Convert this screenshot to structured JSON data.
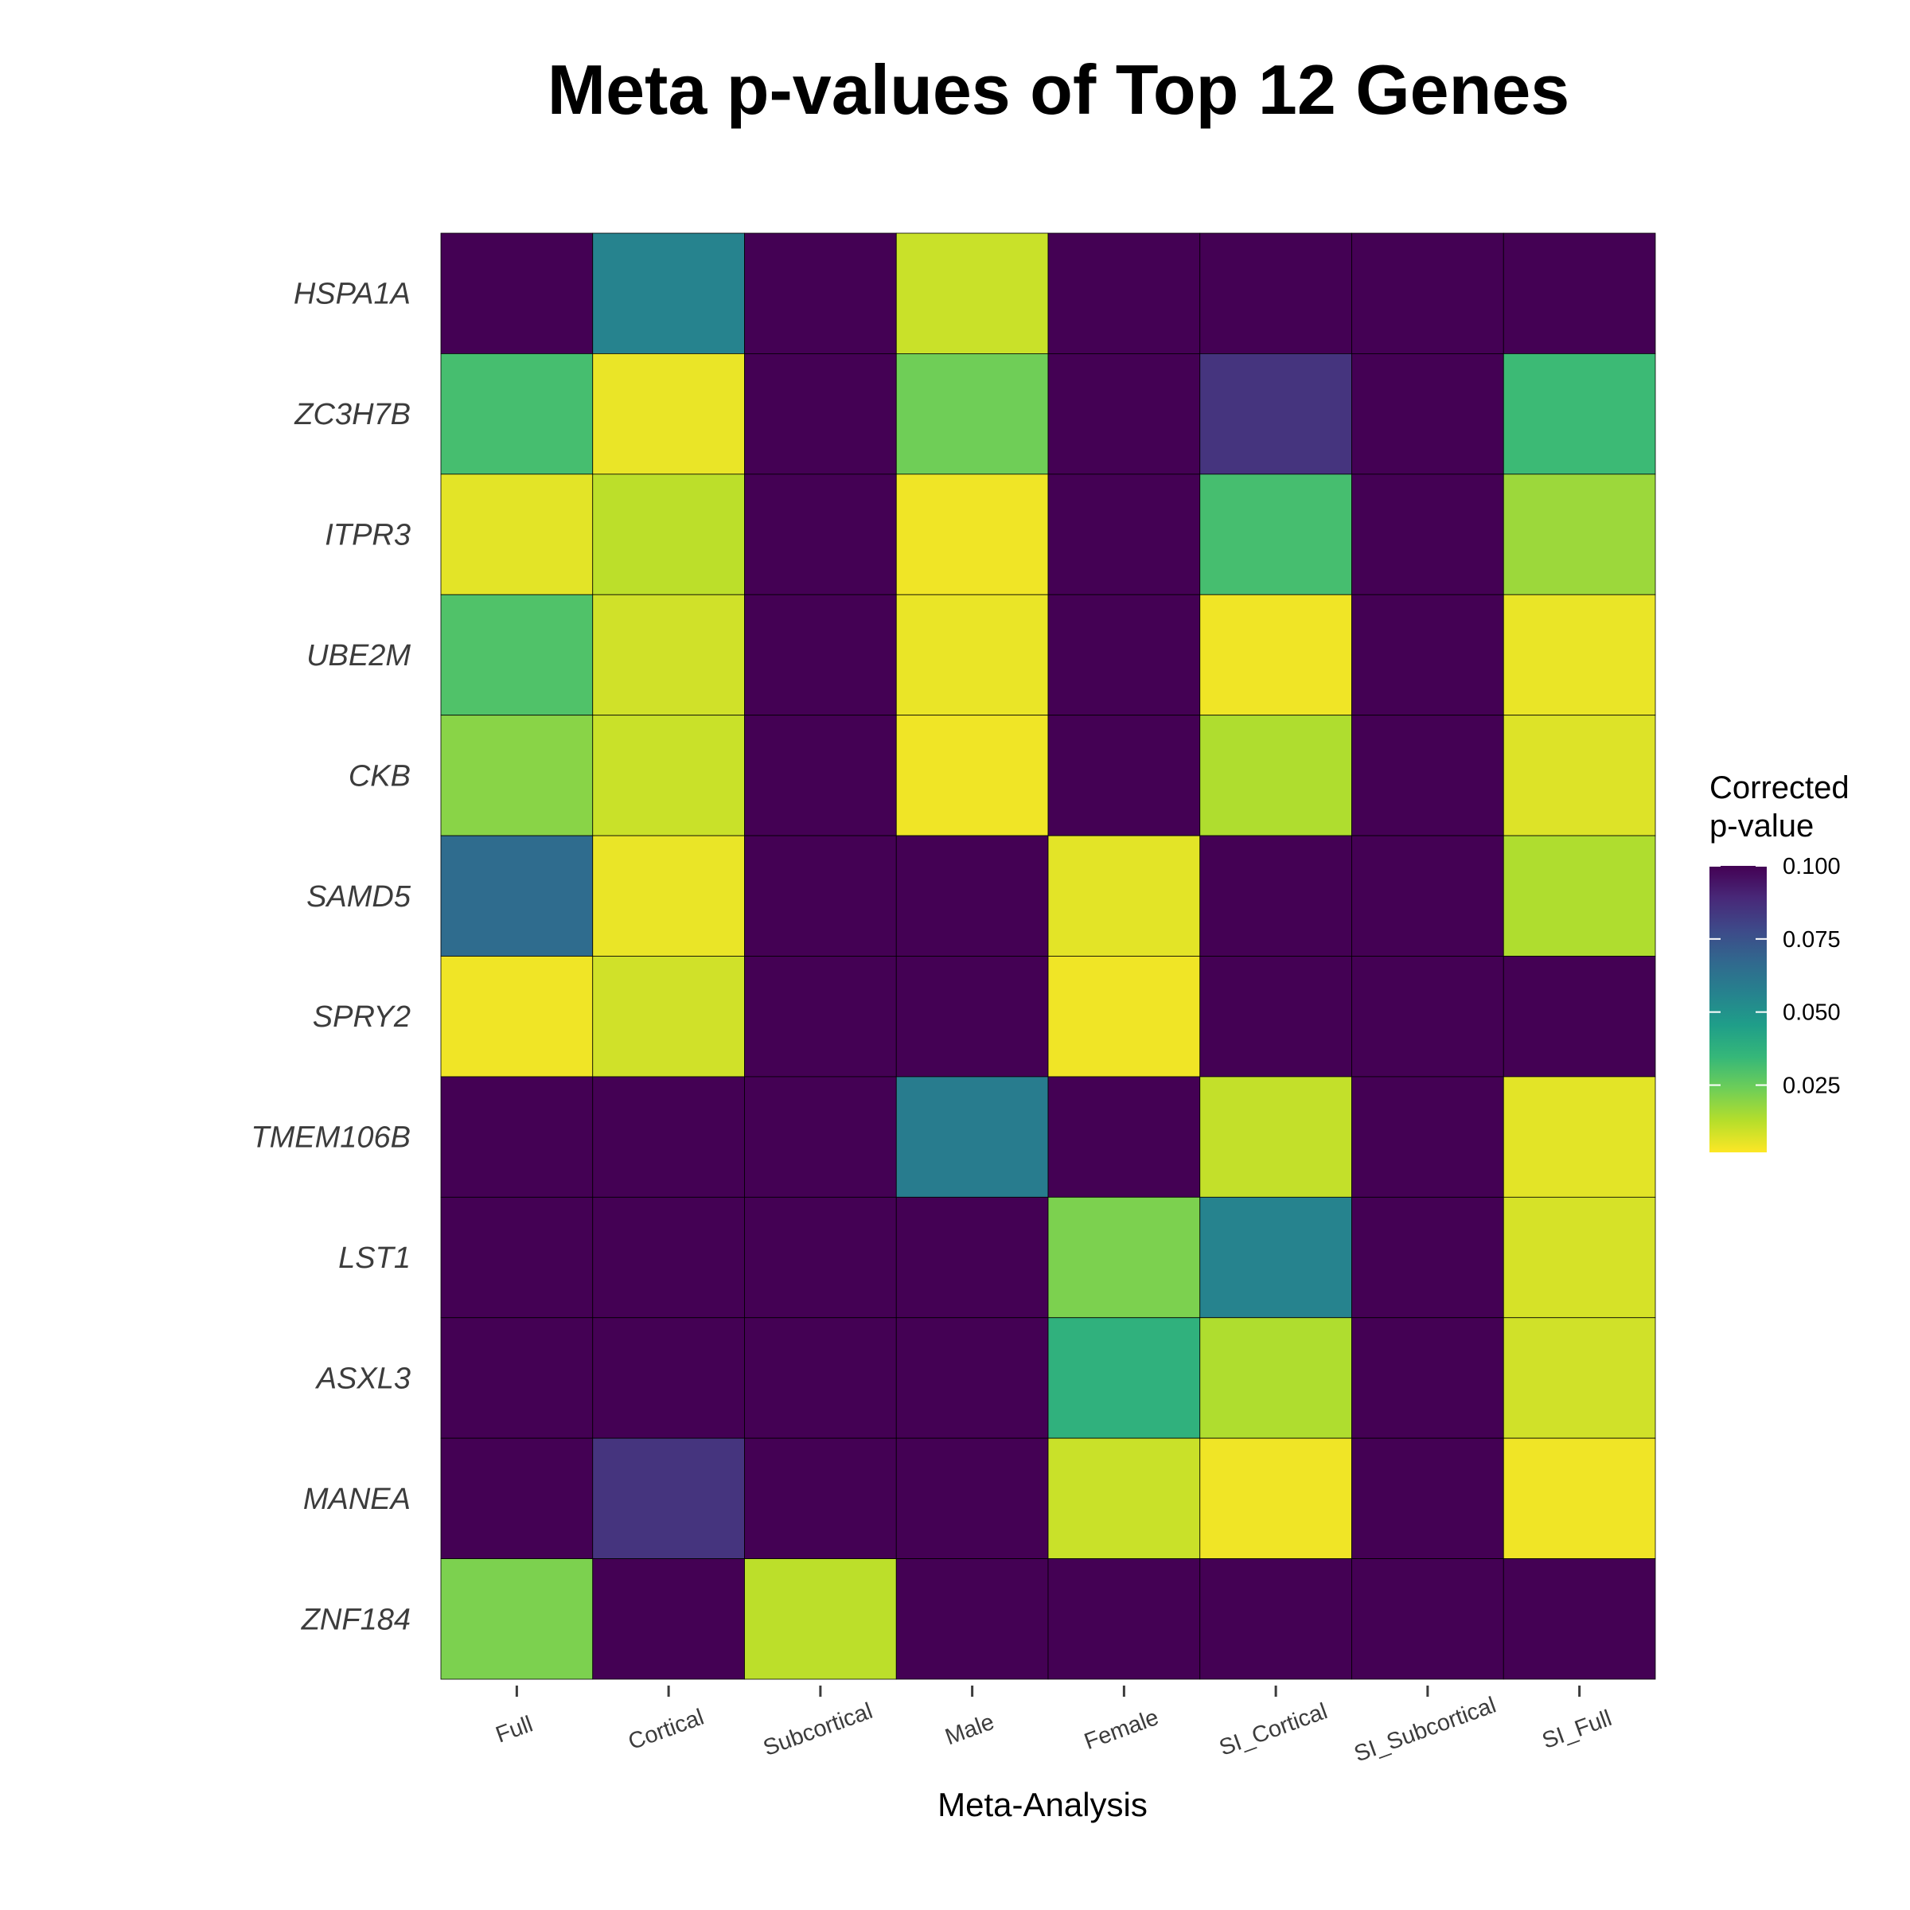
{
  "chart_data": {
    "type": "heatmap",
    "title": "Meta p-values of Top 12 Genes",
    "xlabel": "Meta-Analysis",
    "ylabel": "",
    "x_categories": [
      "Full",
      "Cortical",
      "Subcortical",
      "Male",
      "Female",
      "SI_Cortical",
      "SI_Subcortical",
      "SI_Full"
    ],
    "y_categories": [
      "HSPA1A",
      "ZC3H7B",
      "ITPR3",
      "UBE2M",
      "CKB",
      "SAMD5",
      "SPRY2",
      "TMEM106B",
      "LST1",
      "ASXL3",
      "MANEA",
      "ZNF184"
    ],
    "values": [
      [
        0.1,
        0.055,
        0.1,
        0.008,
        0.1,
        0.1,
        0.1,
        0.1
      ],
      [
        0.03,
        0.003,
        0.1,
        0.022,
        0.1,
        0.085,
        0.1,
        0.032
      ],
      [
        0.004,
        0.01,
        0.1,
        0.002,
        0.1,
        0.03,
        0.1,
        0.015
      ],
      [
        0.028,
        0.007,
        0.1,
        0.003,
        0.1,
        0.002,
        0.1,
        0.003
      ],
      [
        0.018,
        0.008,
        0.1,
        0.002,
        0.1,
        0.012,
        0.1,
        0.005
      ],
      [
        0.065,
        0.003,
        0.1,
        0.1,
        0.004,
        0.1,
        0.1,
        0.012
      ],
      [
        0.002,
        0.007,
        0.1,
        0.1,
        0.002,
        0.1,
        0.1,
        0.1
      ],
      [
        0.1,
        0.1,
        0.1,
        0.058,
        0.1,
        0.009,
        0.1,
        0.004
      ],
      [
        0.1,
        0.1,
        0.1,
        0.1,
        0.02,
        0.055,
        0.1,
        0.006
      ],
      [
        0.1,
        0.1,
        0.1,
        0.1,
        0.036,
        0.012,
        0.1,
        0.007
      ],
      [
        0.1,
        0.085,
        0.1,
        0.1,
        0.008,
        0.002,
        0.1,
        0.002
      ],
      [
        0.02,
        0.1,
        0.01,
        0.1,
        0.1,
        0.1,
        0.1,
        0.1
      ]
    ],
    "color_scale": {
      "name": "viridis",
      "reversed": true,
      "min": 0,
      "max": 0.1,
      "stops": [
        "#fde725",
        "#b5de2b",
        "#6ece58",
        "#35b779",
        "#1f9e89",
        "#26828e",
        "#31688e",
        "#3e4989",
        "#482878",
        "#440154"
      ]
    },
    "legend": {
      "title_lines": [
        "Corrected",
        "p-value"
      ],
      "ticks": [
        0.1,
        0.075,
        0.05,
        0.025
      ],
      "tick_labels": [
        "0.100",
        "0.075",
        "0.050",
        "0.025"
      ],
      "placement": "right"
    },
    "grid": false
  }
}
